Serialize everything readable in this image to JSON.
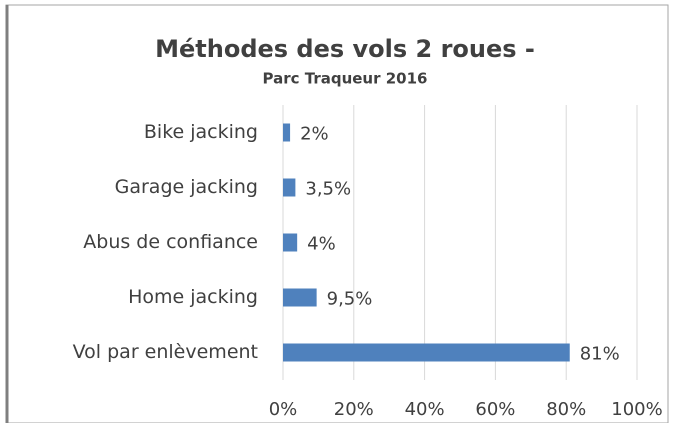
{
  "chart_data": {
    "type": "bar",
    "orientation": "horizontal",
    "title": "Méthodes des vols 2 roues -",
    "subtitle": "Parc Traqueur 2016",
    "categories": [
      "Bike jacking",
      "Garage jacking",
      "Abus de confiance",
      "Home jacking",
      "Vol par enlèvement"
    ],
    "values": [
      2,
      3.5,
      4,
      9.5,
      81
    ],
    "value_labels": [
      "2%",
      "3,5%",
      "4%",
      "9,5%",
      "81%"
    ],
    "color": "#4f81bd",
    "xlim": [
      0,
      100
    ],
    "xticks": [
      {
        "value": 0,
        "label": "0%"
      },
      {
        "value": 20,
        "label": "20%"
      },
      {
        "value": 40,
        "label": "40%"
      },
      {
        "value": 60,
        "label": "60%"
      },
      {
        "value": 80,
        "label": "80%"
      },
      {
        "value": 100,
        "label": "100%"
      }
    ],
    "grid": true
  }
}
